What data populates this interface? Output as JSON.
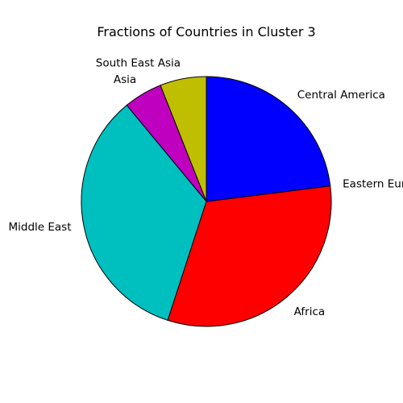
{
  "chart_data": {
    "type": "pie",
    "title": "Fractions of Countries in Cluster 3",
    "slices": [
      {
        "label": "South East Asia",
        "value": 6,
        "color": "#bfbf00"
      },
      {
        "label": "Asia",
        "value": 5,
        "color": "#bf00bf"
      },
      {
        "label": "Middle East",
        "value": 34,
        "color": "#00bfbf"
      },
      {
        "label": "Africa",
        "value": 32,
        "color": "#ff0000"
      },
      {
        "label": "Eastern Europe",
        "value": 0,
        "color": "#00ff00"
      },
      {
        "label": "Central America",
        "value": 23,
        "color": "#0000ff"
      }
    ],
    "start_angle_deg": 90,
    "direction": "counterclockwise"
  }
}
